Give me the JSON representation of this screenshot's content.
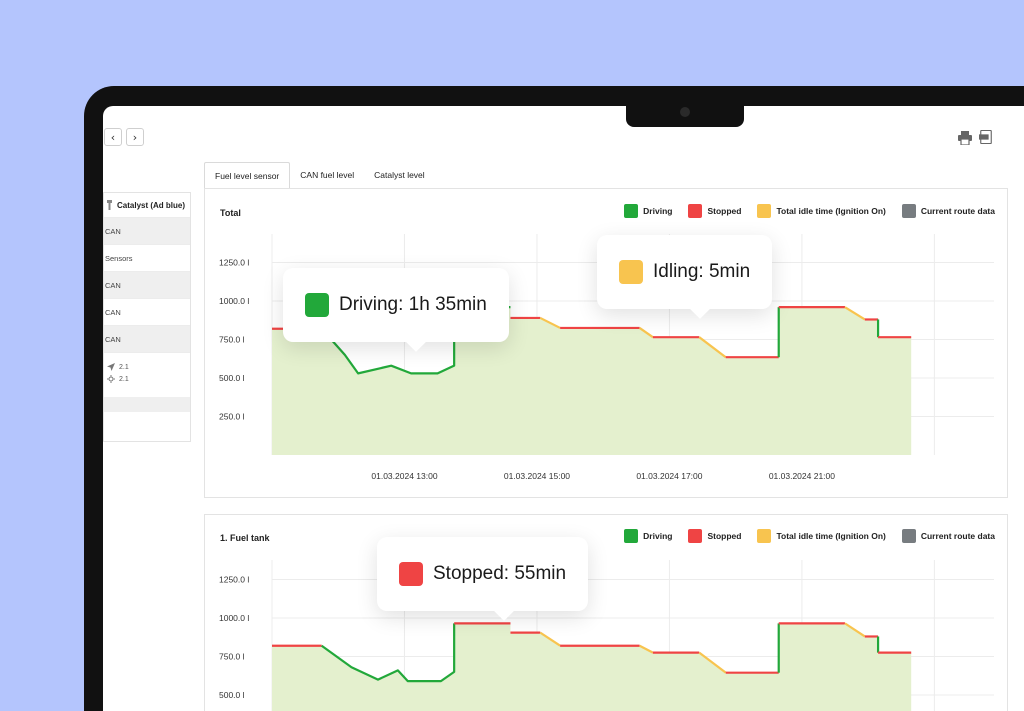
{
  "colors": {
    "background": "#b4c5fd",
    "driving": "#22a83a",
    "stopped": "#ef4444",
    "idle": "#f8c44f",
    "route": "#777c80",
    "fill": "#e4f0ce"
  },
  "toolbar": {
    "back_icon": "chevron-left-icon",
    "forward_icon": "chevron-right-icon",
    "back_glyph": "‹",
    "forward_glyph": "›",
    "print_icon": "printer-icon",
    "pdf_icon": "pdf-icon"
  },
  "tabs": [
    {
      "label": "Fuel level sensor",
      "active": true
    },
    {
      "label": "CAN fuel level",
      "active": false
    },
    {
      "label": "Catalyst level",
      "active": false
    }
  ],
  "sidebar": {
    "header": "Catalyst (Ad blue)",
    "rows": [
      "CAN",
      "Sensors",
      "CAN",
      "CAN",
      "CAN"
    ],
    "sub_values": [
      {
        "icon": "navigation-icon",
        "value": "2.1"
      },
      {
        "icon": "sun-icon",
        "value": "2.1"
      }
    ]
  },
  "legend": [
    {
      "label": "Driving",
      "color": "#22a83a"
    },
    {
      "label": "Stopped",
      "color": "#ef4444"
    },
    {
      "label": "Total idle time (Ignition On)",
      "color": "#f8c44f"
    },
    {
      "label": "Current route data",
      "color": "#777c80"
    }
  ],
  "tooltips": {
    "driving": "Driving: 1h 35min",
    "idling": "Idling: 5min",
    "stopped": "Stopped: 55min"
  },
  "chart_data": [
    {
      "type": "area",
      "title": "Total",
      "xlabel": "",
      "ylabel": "",
      "yticks": [
        "1250.0 l",
        "1000.0 l",
        "750.0 l",
        "500.0 l",
        "250.0 l"
      ],
      "ylim": [
        0,
        1500
      ],
      "xticks": [
        "01.03.2024 13:00",
        "01.03.2024 15:00",
        "01.03.2024 17:00",
        "01.03.2024 21:00"
      ],
      "xlim_hours": [
        11,
        21.9
      ],
      "segments": [
        {
          "status": "stopped",
          "points": [
            [
              11.0,
              820
            ],
            [
              11.75,
              820
            ]
          ]
        },
        {
          "status": "driving",
          "points": [
            [
              11.75,
              820
            ],
            [
              12.1,
              650
            ],
            [
              12.3,
              530
            ],
            [
              12.8,
              580
            ],
            [
              13.1,
              530
            ],
            [
              13.5,
              530
            ],
            [
              13.75,
              580
            ],
            [
              13.75,
              960
            ],
            [
              14.6,
              960
            ]
          ]
        },
        {
          "status": "stopped",
          "points": [
            [
              14.6,
              890
            ],
            [
              15.05,
              890
            ]
          ]
        },
        {
          "status": "idle",
          "points": [
            [
              15.05,
              890
            ],
            [
              15.35,
              825
            ]
          ]
        },
        {
          "status": "stopped",
          "points": [
            [
              15.35,
              825
            ],
            [
              16.55,
              825
            ]
          ]
        },
        {
          "status": "idle",
          "points": [
            [
              16.55,
              825
            ],
            [
              16.75,
              765
            ]
          ]
        },
        {
          "status": "stopped",
          "points": [
            [
              16.75,
              765
            ],
            [
              17.45,
              765
            ]
          ]
        },
        {
          "status": "idle",
          "points": [
            [
              17.45,
              765
            ],
            [
              17.85,
              635
            ]
          ]
        },
        {
          "status": "stopped",
          "points": [
            [
              17.85,
              635
            ],
            [
              18.65,
              635
            ]
          ]
        },
        {
          "status": "driving",
          "points": [
            [
              18.65,
              635
            ],
            [
              18.65,
              960
            ]
          ]
        },
        {
          "status": "stopped",
          "points": [
            [
              18.65,
              960
            ],
            [
              19.65,
              960
            ]
          ]
        },
        {
          "status": "idle",
          "points": [
            [
              19.65,
              960
            ],
            [
              19.95,
              880
            ]
          ]
        },
        {
          "status": "stopped",
          "points": [
            [
              19.95,
              880
            ],
            [
              20.15,
              880
            ]
          ]
        },
        {
          "status": "driving",
          "points": [
            [
              20.15,
              880
            ],
            [
              20.15,
              765
            ]
          ]
        },
        {
          "status": "stopped",
          "points": [
            [
              20.15,
              765
            ],
            [
              20.65,
              765
            ]
          ]
        }
      ]
    },
    {
      "type": "area",
      "title": "1. Fuel tank",
      "xlabel": "",
      "ylabel": "",
      "yticks": [
        "1250.0 l",
        "1000.0 l",
        "750.0 l",
        "500.0 l"
      ],
      "ylim": [
        0,
        1500
      ],
      "xlim_hours": [
        11,
        21.9
      ],
      "segments": [
        {
          "status": "stopped",
          "points": [
            [
              11.0,
              820
            ],
            [
              11.75,
              820
            ]
          ]
        },
        {
          "status": "driving",
          "points": [
            [
              11.75,
              820
            ],
            [
              12.2,
              680
            ],
            [
              12.6,
              600
            ],
            [
              12.9,
              660
            ],
            [
              13.05,
              590
            ],
            [
              13.55,
              590
            ],
            [
              13.75,
              650
            ],
            [
              13.75,
              965
            ]
          ]
        },
        {
          "status": "stopped",
          "points": [
            [
              13.75,
              965
            ],
            [
              14.6,
              965
            ]
          ]
        },
        {
          "status": "stopped",
          "points": [
            [
              14.6,
              905
            ],
            [
              15.05,
              905
            ]
          ]
        },
        {
          "status": "idle",
          "points": [
            [
              15.05,
              905
            ],
            [
              15.35,
              820
            ]
          ]
        },
        {
          "status": "stopped",
          "points": [
            [
              15.35,
              820
            ],
            [
              16.55,
              820
            ]
          ]
        },
        {
          "status": "idle",
          "points": [
            [
              16.55,
              820
            ],
            [
              16.75,
              775
            ]
          ]
        },
        {
          "status": "stopped",
          "points": [
            [
              16.75,
              775
            ],
            [
              17.45,
              775
            ]
          ]
        },
        {
          "status": "idle",
          "points": [
            [
              17.45,
              775
            ],
            [
              17.85,
              645
            ]
          ]
        },
        {
          "status": "stopped",
          "points": [
            [
              17.85,
              645
            ],
            [
              18.65,
              645
            ]
          ]
        },
        {
          "status": "driving",
          "points": [
            [
              18.65,
              645
            ],
            [
              18.65,
              965
            ]
          ]
        },
        {
          "status": "stopped",
          "points": [
            [
              18.65,
              965
            ],
            [
              19.65,
              965
            ]
          ]
        },
        {
          "status": "idle",
          "points": [
            [
              19.65,
              965
            ],
            [
              19.95,
              880
            ]
          ]
        },
        {
          "status": "stopped",
          "points": [
            [
              19.95,
              880
            ],
            [
              20.15,
              880
            ]
          ]
        },
        {
          "status": "driving",
          "points": [
            [
              20.15,
              880
            ],
            [
              20.15,
              775
            ]
          ]
        },
        {
          "status": "stopped",
          "points": [
            [
              20.15,
              775
            ],
            [
              20.65,
              775
            ]
          ]
        }
      ]
    }
  ]
}
